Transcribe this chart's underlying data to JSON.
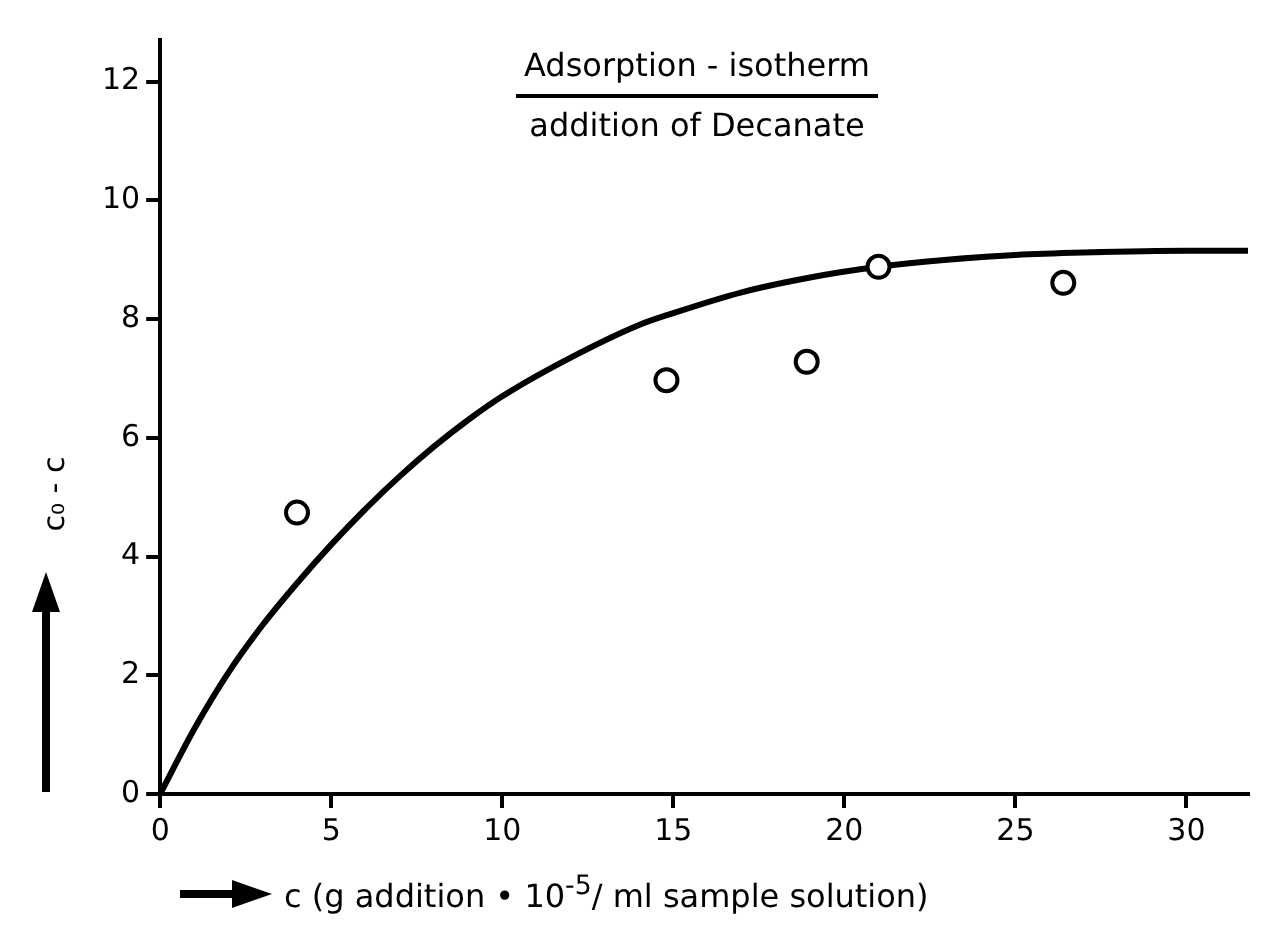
{
  "chart_data": {
    "type": "scatter",
    "title": "Adsorption - isotherm",
    "subtitle": "addition of Decanate",
    "xlabel": "c (g addition • 10$^{-5}$/ ml sample solution)",
    "ylabel": "c₀ - c",
    "xlim": [
      0,
      31.8
    ],
    "xticks": [
      0,
      5,
      10,
      15,
      20,
      25,
      30
    ],
    "ylim": [
      0,
      12.7
    ],
    "yticks": [
      0,
      2,
      4,
      6,
      8,
      10,
      12
    ],
    "grid": false,
    "legend": false,
    "series": [
      {
        "color": "#000000",
        "marker": "circle",
        "x": [
          4.0,
          14.8,
          18.9,
          21.0,
          26.4
        ],
        "values": [
          4.74,
          6.97,
          7.28,
          8.88,
          8.61
        ]
      },
      {
        "type": "line",
        "color": "#000000",
        "marker": "none",
        "line_style": "solid",
        "x": [
          0,
          1,
          2,
          3,
          4,
          5,
          6,
          7,
          8,
          9,
          10,
          12,
          14,
          15,
          17,
          19,
          21,
          23,
          25,
          27,
          30,
          31.8
        ],
        "values": [
          0,
          1.1,
          2.05,
          2.85,
          3.55,
          4.2,
          4.8,
          5.35,
          5.85,
          6.3,
          6.7,
          7.35,
          7.9,
          8.1,
          8.45,
          8.7,
          8.88,
          9.0,
          9.08,
          9.12,
          9.15,
          9.15
        ]
      }
    ]
  }
}
